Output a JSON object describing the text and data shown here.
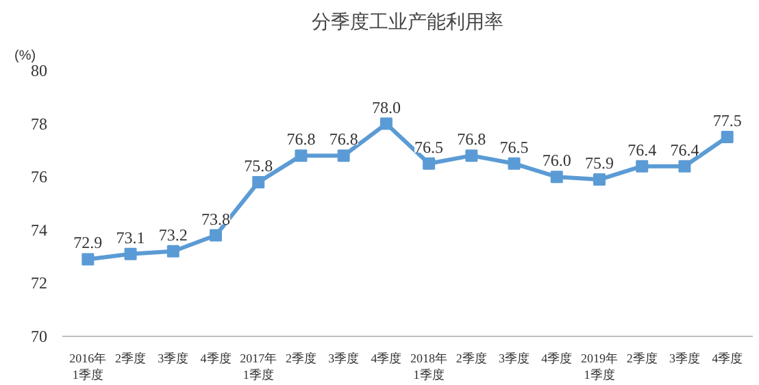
{
  "chart_data": {
    "type": "line",
    "title": "分季度工业产能利用率",
    "ylabel": "(%)",
    "categories": [
      "2016年\n1季度",
      "2季度",
      "3季度",
      "4季度",
      "2017年\n1季度",
      "2季度",
      "3季度",
      "4季度",
      "2018年\n1季度",
      "2季度",
      "3季度",
      "4季度",
      "2019年\n1季度",
      "2季度",
      "3季度",
      "4季度"
    ],
    "series": [
      {
        "color": "#5b9bd5",
        "values": [
          72.9,
          73.1,
          73.2,
          73.8,
          75.8,
          76.8,
          76.8,
          78.0,
          76.5,
          76.8,
          76.5,
          76.0,
          75.9,
          76.4,
          76.4,
          77.5
        ],
        "value_labels": [
          "72.9",
          "73.1",
          "73.2",
          "73.8",
          "75.8",
          "76.8",
          "76.8",
          "78.0",
          "76.5",
          "76.8",
          "76.5",
          "76.0",
          "75.9",
          "76.4",
          "76.4",
          "77.5"
        ]
      }
    ],
    "ylim": [
      70,
      80
    ],
    "yticks": [
      70,
      72,
      74,
      76,
      78,
      80
    ],
    "marker": "square",
    "line_style": "solid",
    "grid": false
  }
}
